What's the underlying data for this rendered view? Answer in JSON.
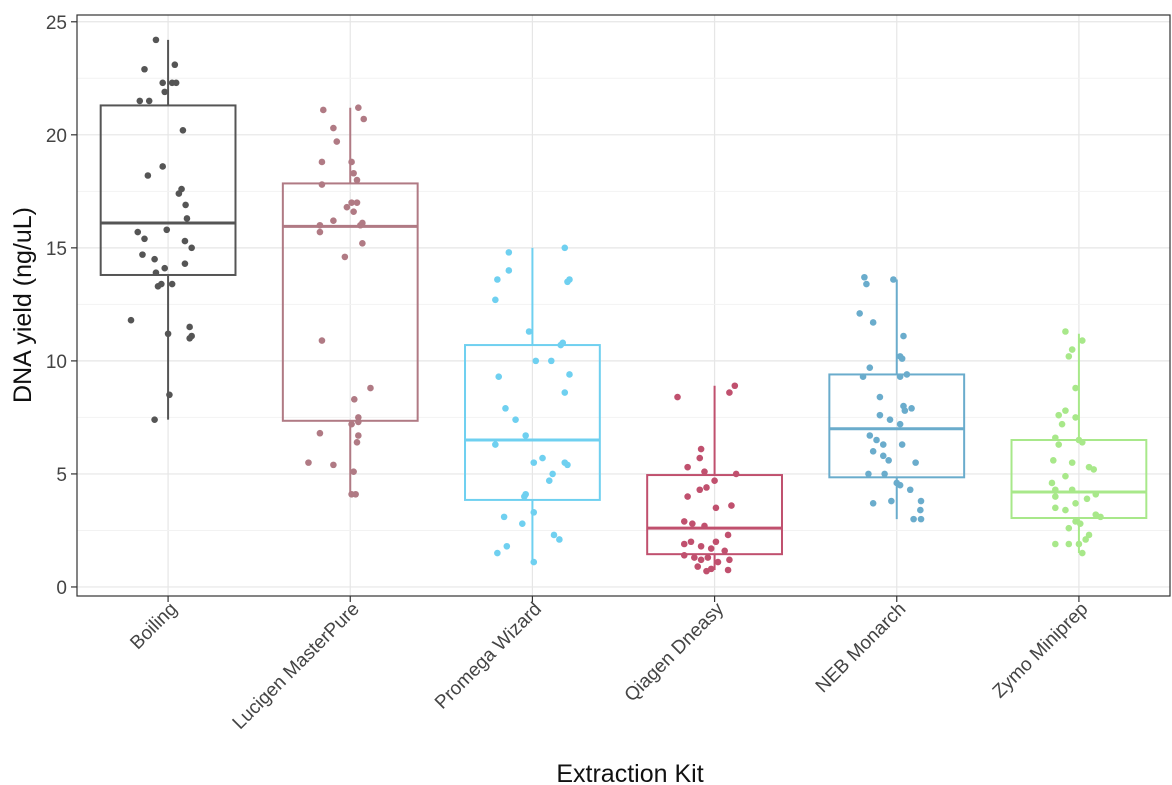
{
  "chart_data": {
    "type": "box+jitter",
    "xlabel": "Extraction Kit",
    "ylabel": "DNA yield (ng/uL)",
    "ylim": [
      -0.4,
      25.3
    ],
    "yticks": [
      0,
      5,
      10,
      15,
      20,
      25
    ],
    "grid": true,
    "legend": "none",
    "categories": [
      "Boiling",
      "Lucigen MasterPure",
      "Promega Wizard",
      "Qiagen Dneasy",
      "NEB Monarch",
      "Zymo Miniprep"
    ],
    "series": [
      {
        "category": "Boiling",
        "color": "#555555",
        "box": {
          "whisker_low": 7.4,
          "q1": 13.8,
          "median": 16.1,
          "q3": 21.3,
          "whisker_high": 24.2
        },
        "points": [
          {
            "jitter": -0.18,
            "y": 24.2
          },
          {
            "jitter": 0.1,
            "y": 23.1
          },
          {
            "jitter": -0.35,
            "y": 22.9
          },
          {
            "jitter": -0.42,
            "y": 21.5
          },
          {
            "jitter": 0.06,
            "y": 22.3
          },
          {
            "jitter": -0.08,
            "y": 22.3
          },
          {
            "jitter": 0.12,
            "y": 22.3
          },
          {
            "jitter": -0.05,
            "y": 21.9
          },
          {
            "jitter": -0.28,
            "y": 21.5
          },
          {
            "jitter": 0.22,
            "y": 20.2
          },
          {
            "jitter": -0.08,
            "y": 18.6
          },
          {
            "jitter": -0.3,
            "y": 18.2
          },
          {
            "jitter": 0.2,
            "y": 17.6
          },
          {
            "jitter": 0.16,
            "y": 17.4
          },
          {
            "jitter": 0.26,
            "y": 16.9
          },
          {
            "jitter": 0.28,
            "y": 16.3
          },
          {
            "jitter": -0.45,
            "y": 15.7
          },
          {
            "jitter": -0.02,
            "y": 15.8
          },
          {
            "jitter": -0.35,
            "y": 15.4
          },
          {
            "jitter": 0.25,
            "y": 15.3
          },
          {
            "jitter": 0.35,
            "y": 15.0
          },
          {
            "jitter": -0.38,
            "y": 14.7
          },
          {
            "jitter": -0.2,
            "y": 14.5
          },
          {
            "jitter": 0.25,
            "y": 14.3
          },
          {
            "jitter": -0.05,
            "y": 14.1
          },
          {
            "jitter": -0.18,
            "y": 13.9
          },
          {
            "jitter": -0.1,
            "y": 13.4
          },
          {
            "jitter": 0.06,
            "y": 13.4
          },
          {
            "jitter": -0.15,
            "y": 13.3
          },
          {
            "jitter": -0.55,
            "y": 11.8
          },
          {
            "jitter": 0.32,
            "y": 11.5
          },
          {
            "jitter": 0.35,
            "y": 11.1
          },
          {
            "jitter": 0.32,
            "y": 11.0
          },
          {
            "jitter": 0.0,
            "y": 11.2
          },
          {
            "jitter": 0.02,
            "y": 8.5
          },
          {
            "jitter": -0.2,
            "y": 7.4
          }
        ]
      },
      {
        "category": "Lucigen MasterPure",
        "color": "#b07a84",
        "box": {
          "whisker_low": 4.1,
          "q1": 7.35,
          "median": 15.95,
          "q3": 17.85,
          "whisker_high": 21.2
        },
        "points": [
          {
            "jitter": -0.4,
            "y": 21.1
          },
          {
            "jitter": 0.12,
            "y": 21.2
          },
          {
            "jitter": 0.2,
            "y": 20.7
          },
          {
            "jitter": -0.25,
            "y": 20.3
          },
          {
            "jitter": -0.2,
            "y": 19.7
          },
          {
            "jitter": -0.42,
            "y": 18.8
          },
          {
            "jitter": 0.02,
            "y": 18.8
          },
          {
            "jitter": 0.05,
            "y": 18.3
          },
          {
            "jitter": 0.1,
            "y": 18.0
          },
          {
            "jitter": -0.42,
            "y": 17.8
          },
          {
            "jitter": -0.05,
            "y": 16.8
          },
          {
            "jitter": 0.02,
            "y": 17.0
          },
          {
            "jitter": 0.1,
            "y": 17.0
          },
          {
            "jitter": 0.05,
            "y": 16.6
          },
          {
            "jitter": -0.25,
            "y": 16.2
          },
          {
            "jitter": -0.45,
            "y": 16.0
          },
          {
            "jitter": 0.15,
            "y": 16.0
          },
          {
            "jitter": 0.18,
            "y": 16.1
          },
          {
            "jitter": -0.45,
            "y": 15.7
          },
          {
            "jitter": 0.18,
            "y": 15.2
          },
          {
            "jitter": -0.08,
            "y": 14.6
          },
          {
            "jitter": -0.42,
            "y": 10.9
          },
          {
            "jitter": 0.3,
            "y": 8.8
          },
          {
            "jitter": 0.06,
            "y": 8.3
          },
          {
            "jitter": 0.12,
            "y": 7.5
          },
          {
            "jitter": 0.12,
            "y": 7.3
          },
          {
            "jitter": 0.02,
            "y": 7.2
          },
          {
            "jitter": -0.45,
            "y": 6.8
          },
          {
            "jitter": 0.12,
            "y": 6.7
          },
          {
            "jitter": 0.1,
            "y": 6.4
          },
          {
            "jitter": -0.62,
            "y": 5.5
          },
          {
            "jitter": -0.25,
            "y": 5.4
          },
          {
            "jitter": 0.05,
            "y": 5.1
          },
          {
            "jitter": 0.02,
            "y": 4.1
          },
          {
            "jitter": 0.08,
            "y": 4.1
          }
        ]
      },
      {
        "category": "Promega Wizard",
        "color": "#6fd0f0",
        "box": {
          "whisker_low": 1.1,
          "q1": 3.85,
          "median": 6.5,
          "q3": 10.7,
          "whisker_high": 15.0
        },
        "points": [
          {
            "jitter": 0.48,
            "y": 15.0
          },
          {
            "jitter": -0.35,
            "y": 14.8
          },
          {
            "jitter": -0.35,
            "y": 14.0
          },
          {
            "jitter": -0.52,
            "y": 13.6
          },
          {
            "jitter": 0.55,
            "y": 13.6
          },
          {
            "jitter": 0.52,
            "y": 13.5
          },
          {
            "jitter": -0.55,
            "y": 12.7
          },
          {
            "jitter": -0.05,
            "y": 11.3
          },
          {
            "jitter": 0.45,
            "y": 10.8
          },
          {
            "jitter": 0.42,
            "y": 10.7
          },
          {
            "jitter": 0.05,
            "y": 10.0
          },
          {
            "jitter": 0.28,
            "y": 10.0
          },
          {
            "jitter": -0.5,
            "y": 9.3
          },
          {
            "jitter": 0.55,
            "y": 9.4
          },
          {
            "jitter": 0.48,
            "y": 8.6
          },
          {
            "jitter": -0.4,
            "y": 7.9
          },
          {
            "jitter": -0.25,
            "y": 7.4
          },
          {
            "jitter": -0.1,
            "y": 6.7
          },
          {
            "jitter": -0.55,
            "y": 6.3
          },
          {
            "jitter": 0.15,
            "y": 5.7
          },
          {
            "jitter": 0.02,
            "y": 5.5
          },
          {
            "jitter": 0.48,
            "y": 5.5
          },
          {
            "jitter": 0.52,
            "y": 5.4
          },
          {
            "jitter": 0.3,
            "y": 5.0
          },
          {
            "jitter": 0.25,
            "y": 4.7
          },
          {
            "jitter": -0.1,
            "y": 4.1
          },
          {
            "jitter": -0.12,
            "y": 4.0
          },
          {
            "jitter": -0.42,
            "y": 3.1
          },
          {
            "jitter": 0.02,
            "y": 3.3
          },
          {
            "jitter": -0.15,
            "y": 2.8
          },
          {
            "jitter": 0.32,
            "y": 2.3
          },
          {
            "jitter": 0.4,
            "y": 2.1
          },
          {
            "jitter": -0.38,
            "y": 1.8
          },
          {
            "jitter": -0.52,
            "y": 1.5
          },
          {
            "jitter": 0.02,
            "y": 1.1
          }
        ]
      },
      {
        "category": "Qiagen Dneasy",
        "color": "#c0506e",
        "box": {
          "whisker_low": 0.75,
          "q1": 1.45,
          "median": 2.6,
          "q3": 4.95,
          "whisker_high": 8.9
        },
        "points": [
          {
            "jitter": -0.55,
            "y": 8.4
          },
          {
            "jitter": 0.22,
            "y": 8.6
          },
          {
            "jitter": 0.3,
            "y": 8.9
          },
          {
            "jitter": -0.2,
            "y": 6.1
          },
          {
            "jitter": -0.22,
            "y": 5.7
          },
          {
            "jitter": -0.4,
            "y": 5.3
          },
          {
            "jitter": -0.15,
            "y": 5.1
          },
          {
            "jitter": 0.32,
            "y": 5.0
          },
          {
            "jitter": 0.0,
            "y": 4.7
          },
          {
            "jitter": -0.12,
            "y": 4.4
          },
          {
            "jitter": -0.22,
            "y": 4.3
          },
          {
            "jitter": -0.4,
            "y": 4.0
          },
          {
            "jitter": 0.25,
            "y": 3.6
          },
          {
            "jitter": 0.02,
            "y": 3.5
          },
          {
            "jitter": -0.45,
            "y": 2.9
          },
          {
            "jitter": -0.33,
            "y": 2.8
          },
          {
            "jitter": -0.15,
            "y": 2.7
          },
          {
            "jitter": 0.2,
            "y": 2.3
          },
          {
            "jitter": -0.45,
            "y": 1.9
          },
          {
            "jitter": -0.35,
            "y": 2.0
          },
          {
            "jitter": -0.2,
            "y": 1.8
          },
          {
            "jitter": -0.05,
            "y": 1.7
          },
          {
            "jitter": 0.02,
            "y": 2.0
          },
          {
            "jitter": 0.15,
            "y": 1.6
          },
          {
            "jitter": -0.45,
            "y": 1.4
          },
          {
            "jitter": -0.3,
            "y": 1.3
          },
          {
            "jitter": -0.2,
            "y": 1.2
          },
          {
            "jitter": -0.1,
            "y": 1.3
          },
          {
            "jitter": 0.05,
            "y": 1.1
          },
          {
            "jitter": 0.22,
            "y": 1.2
          },
          {
            "jitter": -0.25,
            "y": 0.9
          },
          {
            "jitter": -0.05,
            "y": 0.8
          },
          {
            "jitter": 0.2,
            "y": 0.75
          },
          {
            "jitter": -0.12,
            "y": 0.7
          }
        ]
      },
      {
        "category": "NEB Monarch",
        "color": "#6aaccc",
        "box": {
          "whisker_low": 3.0,
          "q1": 4.85,
          "median": 7.0,
          "q3": 9.4,
          "whisker_high": 13.6
        },
        "points": [
          {
            "jitter": -0.48,
            "y": 13.7
          },
          {
            "jitter": -0.45,
            "y": 13.4
          },
          {
            "jitter": -0.05,
            "y": 13.6
          },
          {
            "jitter": -0.55,
            "y": 12.1
          },
          {
            "jitter": -0.35,
            "y": 11.7
          },
          {
            "jitter": 0.1,
            "y": 11.1
          },
          {
            "jitter": 0.05,
            "y": 10.2
          },
          {
            "jitter": 0.08,
            "y": 10.1
          },
          {
            "jitter": -0.4,
            "y": 9.7
          },
          {
            "jitter": -0.5,
            "y": 9.3
          },
          {
            "jitter": 0.05,
            "y": 9.3
          },
          {
            "jitter": 0.15,
            "y": 9.4
          },
          {
            "jitter": -0.25,
            "y": 8.4
          },
          {
            "jitter": 0.1,
            "y": 8.0
          },
          {
            "jitter": 0.22,
            "y": 7.9
          },
          {
            "jitter": 0.12,
            "y": 7.8
          },
          {
            "jitter": -0.25,
            "y": 7.6
          },
          {
            "jitter": -0.1,
            "y": 7.4
          },
          {
            "jitter": 0.05,
            "y": 7.2
          },
          {
            "jitter": -0.4,
            "y": 6.7
          },
          {
            "jitter": -0.3,
            "y": 6.5
          },
          {
            "jitter": -0.2,
            "y": 6.3
          },
          {
            "jitter": 0.08,
            "y": 6.3
          },
          {
            "jitter": -0.35,
            "y": 6.0
          },
          {
            "jitter": -0.2,
            "y": 5.8
          },
          {
            "jitter": -0.12,
            "y": 5.6
          },
          {
            "jitter": 0.28,
            "y": 5.5
          },
          {
            "jitter": -0.42,
            "y": 5.0
          },
          {
            "jitter": -0.18,
            "y": 5.0
          },
          {
            "jitter": 0.0,
            "y": 4.6
          },
          {
            "jitter": 0.05,
            "y": 4.5
          },
          {
            "jitter": 0.2,
            "y": 4.3
          },
          {
            "jitter": -0.08,
            "y": 3.8
          },
          {
            "jitter": 0.36,
            "y": 3.8
          },
          {
            "jitter": -0.35,
            "y": 3.7
          },
          {
            "jitter": 0.35,
            "y": 3.4
          },
          {
            "jitter": 0.25,
            "y": 3.0
          },
          {
            "jitter": 0.36,
            "y": 3.0
          }
        ]
      },
      {
        "category": "Zymo Miniprep",
        "color": "#a8e88a",
        "box": {
          "whisker_low": 1.5,
          "q1": 3.05,
          "median": 4.2,
          "q3": 6.5,
          "whisker_high": 11.2
        },
        "points": [
          {
            "jitter": -0.2,
            "y": 11.3
          },
          {
            "jitter": 0.05,
            "y": 10.9
          },
          {
            "jitter": -0.1,
            "y": 10.5
          },
          {
            "jitter": -0.15,
            "y": 10.2
          },
          {
            "jitter": -0.05,
            "y": 8.8
          },
          {
            "jitter": -0.2,
            "y": 7.8
          },
          {
            "jitter": -0.3,
            "y": 7.6
          },
          {
            "jitter": -0.05,
            "y": 7.5
          },
          {
            "jitter": -0.25,
            "y": 7.2
          },
          {
            "jitter": -0.35,
            "y": 6.6
          },
          {
            "jitter": -0.3,
            "y": 6.3
          },
          {
            "jitter": 0.0,
            "y": 6.5
          },
          {
            "jitter": 0.05,
            "y": 6.4
          },
          {
            "jitter": -0.38,
            "y": 5.6
          },
          {
            "jitter": -0.1,
            "y": 5.5
          },
          {
            "jitter": 0.15,
            "y": 5.3
          },
          {
            "jitter": 0.22,
            "y": 5.2
          },
          {
            "jitter": -0.2,
            "y": 4.9
          },
          {
            "jitter": -0.4,
            "y": 4.6
          },
          {
            "jitter": -0.35,
            "y": 4.3
          },
          {
            "jitter": -0.1,
            "y": 4.3
          },
          {
            "jitter": 0.25,
            "y": 4.1
          },
          {
            "jitter": -0.35,
            "y": 4.0
          },
          {
            "jitter": 0.12,
            "y": 3.9
          },
          {
            "jitter": -0.05,
            "y": 3.7
          },
          {
            "jitter": -0.35,
            "y": 3.5
          },
          {
            "jitter": -0.2,
            "y": 3.4
          },
          {
            "jitter": 0.25,
            "y": 3.2
          },
          {
            "jitter": 0.32,
            "y": 3.1
          },
          {
            "jitter": -0.05,
            "y": 2.9
          },
          {
            "jitter": -0.15,
            "y": 2.6
          },
          {
            "jitter": 0.02,
            "y": 2.8
          },
          {
            "jitter": 0.15,
            "y": 2.3
          },
          {
            "jitter": 0.1,
            "y": 2.1
          },
          {
            "jitter": -0.35,
            "y": 1.9
          },
          {
            "jitter": -0.15,
            "y": 1.9
          },
          {
            "jitter": 0.0,
            "y": 1.9
          },
          {
            "jitter": 0.05,
            "y": 1.5
          }
        ]
      }
    ]
  }
}
